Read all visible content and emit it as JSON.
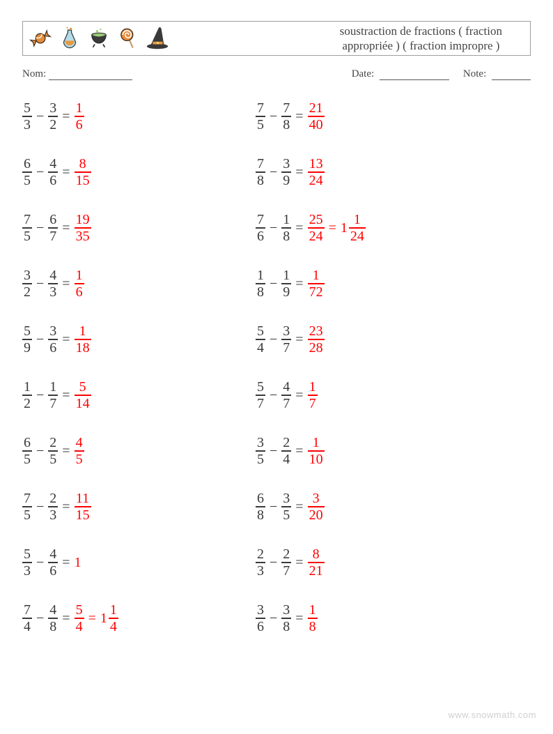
{
  "header": {
    "title_line1": "soustraction de fractions ( fraction",
    "title_line2": "appropriée ) ( fraction impropre )",
    "icons": [
      "candy-icon",
      "flask-icon",
      "cauldron-icon",
      "lollipop-icon",
      "witch-hat-icon"
    ]
  },
  "meta": {
    "name_label": "Nom:",
    "date_label": "Date:",
    "note_label": "Note:",
    "name_blank_width": 120,
    "date_blank_width": 100,
    "note_blank_width": 56
  },
  "style": {
    "text_color": "#393939",
    "answer_color": "#ff0000",
    "border_color": "#9e9e9e",
    "footer_color": "#cfcfcf",
    "font_size_problem": 20,
    "font_size_title": 17,
    "font_size_meta": 15,
    "row_gap": 32
  },
  "problems": {
    "left": [
      {
        "a": {
          "n": "5",
          "d": "3"
        },
        "b": {
          "n": "3",
          "d": "2"
        },
        "ans": [
          {
            "n": "1",
            "d": "6"
          }
        ]
      },
      {
        "a": {
          "n": "6",
          "d": "5"
        },
        "b": {
          "n": "4",
          "d": "6"
        },
        "ans": [
          {
            "n": "8",
            "d": "15"
          }
        ]
      },
      {
        "a": {
          "n": "7",
          "d": "5"
        },
        "b": {
          "n": "6",
          "d": "7"
        },
        "ans": [
          {
            "n": "19",
            "d": "35"
          }
        ]
      },
      {
        "a": {
          "n": "3",
          "d": "2"
        },
        "b": {
          "n": "4",
          "d": "3"
        },
        "ans": [
          {
            "n": "1",
            "d": "6"
          }
        ]
      },
      {
        "a": {
          "n": "5",
          "d": "9"
        },
        "b": {
          "n": "3",
          "d": "6"
        },
        "ans": [
          {
            "n": "1",
            "d": "18"
          }
        ]
      },
      {
        "a": {
          "n": "1",
          "d": "2"
        },
        "b": {
          "n": "1",
          "d": "7"
        },
        "ans": [
          {
            "n": "5",
            "d": "14"
          }
        ]
      },
      {
        "a": {
          "n": "6",
          "d": "5"
        },
        "b": {
          "n": "2",
          "d": "5"
        },
        "ans": [
          {
            "n": "4",
            "d": "5"
          }
        ]
      },
      {
        "a": {
          "n": "7",
          "d": "5"
        },
        "b": {
          "n": "2",
          "d": "3"
        },
        "ans": [
          {
            "n": "11",
            "d": "15"
          }
        ]
      },
      {
        "a": {
          "n": "5",
          "d": "3"
        },
        "b": {
          "n": "4",
          "d": "6"
        },
        "ans": [
          {
            "whole": "1"
          }
        ]
      },
      {
        "a": {
          "n": "7",
          "d": "4"
        },
        "b": {
          "n": "4",
          "d": "8"
        },
        "ans": [
          {
            "n": "5",
            "d": "4"
          },
          {
            "whole": "1",
            "n": "1",
            "d": "4"
          }
        ]
      }
    ],
    "right": [
      {
        "a": {
          "n": "7",
          "d": "5"
        },
        "b": {
          "n": "7",
          "d": "8"
        },
        "ans": [
          {
            "n": "21",
            "d": "40"
          }
        ]
      },
      {
        "a": {
          "n": "7",
          "d": "8"
        },
        "b": {
          "n": "3",
          "d": "9"
        },
        "ans": [
          {
            "n": "13",
            "d": "24"
          }
        ]
      },
      {
        "a": {
          "n": "7",
          "d": "6"
        },
        "b": {
          "n": "1",
          "d": "8"
        },
        "ans": [
          {
            "n": "25",
            "d": "24"
          },
          {
            "whole": "1",
            "n": "1",
            "d": "24"
          }
        ]
      },
      {
        "a": {
          "n": "1",
          "d": "8"
        },
        "b": {
          "n": "1",
          "d": "9"
        },
        "ans": [
          {
            "n": "1",
            "d": "72"
          }
        ]
      },
      {
        "a": {
          "n": "5",
          "d": "4"
        },
        "b": {
          "n": "3",
          "d": "7"
        },
        "ans": [
          {
            "n": "23",
            "d": "28"
          }
        ]
      },
      {
        "a": {
          "n": "5",
          "d": "7"
        },
        "b": {
          "n": "4",
          "d": "7"
        },
        "ans": [
          {
            "n": "1",
            "d": "7"
          }
        ]
      },
      {
        "a": {
          "n": "3",
          "d": "5"
        },
        "b": {
          "n": "2",
          "d": "4"
        },
        "ans": [
          {
            "n": "1",
            "d": "10"
          }
        ]
      },
      {
        "a": {
          "n": "6",
          "d": "8"
        },
        "b": {
          "n": "3",
          "d": "5"
        },
        "ans": [
          {
            "n": "3",
            "d": "20"
          }
        ]
      },
      {
        "a": {
          "n": "2",
          "d": "3"
        },
        "b": {
          "n": "2",
          "d": "7"
        },
        "ans": [
          {
            "n": "8",
            "d": "21"
          }
        ]
      },
      {
        "a": {
          "n": "3",
          "d": "6"
        },
        "b": {
          "n": "3",
          "d": "8"
        },
        "ans": [
          {
            "n": "1",
            "d": "8"
          }
        ]
      }
    ]
  },
  "footer": "www.snowmath.com"
}
